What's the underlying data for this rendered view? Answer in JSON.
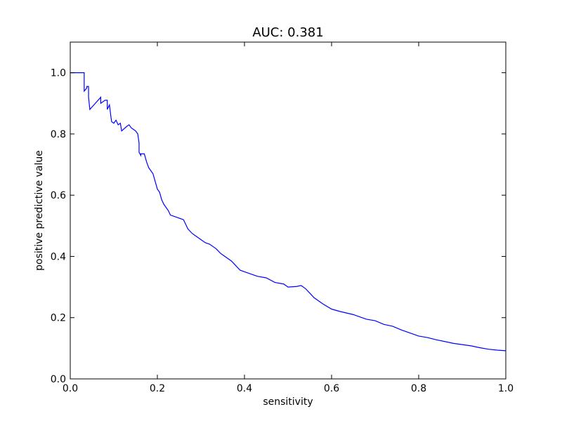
{
  "chart_data": {
    "type": "line",
    "title": "AUC: 0.381",
    "xlabel": "sensitivity",
    "ylabel": "positive predictive value",
    "xlim": [
      0.0,
      1.0
    ],
    "ylim": [
      0.0,
      1.1
    ],
    "grid": false,
    "xticks": [
      0.0,
      0.2,
      0.4,
      0.6,
      0.8,
      1.0
    ],
    "yticks": [
      0.0,
      0.2,
      0.4,
      0.6,
      0.8,
      1.0
    ],
    "xtick_labels": [
      "0.0",
      "0.2",
      "0.4",
      "0.6",
      "0.8",
      "1.0"
    ],
    "ytick_labels": [
      "0.0",
      "0.2",
      "0.4",
      "0.6",
      "0.8",
      "1.0"
    ],
    "series": [
      {
        "color": "#0000ff",
        "x": [
          0.0,
          0.032,
          0.032,
          0.038,
          0.038,
          0.042,
          0.042,
          0.045,
          0.07,
          0.07,
          0.08,
          0.085,
          0.085,
          0.09,
          0.093,
          0.095,
          0.1,
          0.105,
          0.11,
          0.115,
          0.118,
          0.13,
          0.135,
          0.14,
          0.145,
          0.15,
          0.155,
          0.158,
          0.158,
          0.162,
          0.162,
          0.17,
          0.175,
          0.18,
          0.185,
          0.19,
          0.195,
          0.2,
          0.205,
          0.21,
          0.215,
          0.22,
          0.225,
          0.23,
          0.24,
          0.26,
          0.265,
          0.27,
          0.28,
          0.29,
          0.3,
          0.31,
          0.32,
          0.335,
          0.345,
          0.35,
          0.36,
          0.37,
          0.38,
          0.39,
          0.4,
          0.42,
          0.43,
          0.45,
          0.47,
          0.49,
          0.5,
          0.52,
          0.53,
          0.54,
          0.55,
          0.56,
          0.57,
          0.58,
          0.6,
          0.62,
          0.65,
          0.68,
          0.7,
          0.72,
          0.74,
          0.76,
          0.78,
          0.8,
          0.82,
          0.84,
          0.86,
          0.88,
          0.9,
          0.92,
          0.94,
          0.96,
          0.98,
          1.0
        ],
        "y": [
          1.0,
          1.0,
          0.94,
          0.95,
          0.955,
          0.955,
          0.92,
          0.88,
          0.92,
          0.9,
          0.91,
          0.91,
          0.88,
          0.895,
          0.86,
          0.84,
          0.835,
          0.845,
          0.83,
          0.835,
          0.81,
          0.825,
          0.83,
          0.82,
          0.815,
          0.81,
          0.8,
          0.77,
          0.74,
          0.73,
          0.735,
          0.735,
          0.71,
          0.69,
          0.68,
          0.67,
          0.645,
          0.62,
          0.61,
          0.585,
          0.57,
          0.56,
          0.55,
          0.535,
          0.53,
          0.52,
          0.505,
          0.49,
          0.475,
          0.465,
          0.455,
          0.445,
          0.44,
          0.425,
          0.41,
          0.405,
          0.395,
          0.385,
          0.37,
          0.355,
          0.35,
          0.34,
          0.335,
          0.33,
          0.315,
          0.31,
          0.3,
          0.302,
          0.305,
          0.295,
          0.28,
          0.265,
          0.255,
          0.245,
          0.228,
          0.22,
          0.21,
          0.195,
          0.19,
          0.178,
          0.172,
          0.16,
          0.15,
          0.14,
          0.135,
          0.128,
          0.122,
          0.116,
          0.112,
          0.108,
          0.102,
          0.097,
          0.094,
          0.092
        ]
      }
    ]
  }
}
